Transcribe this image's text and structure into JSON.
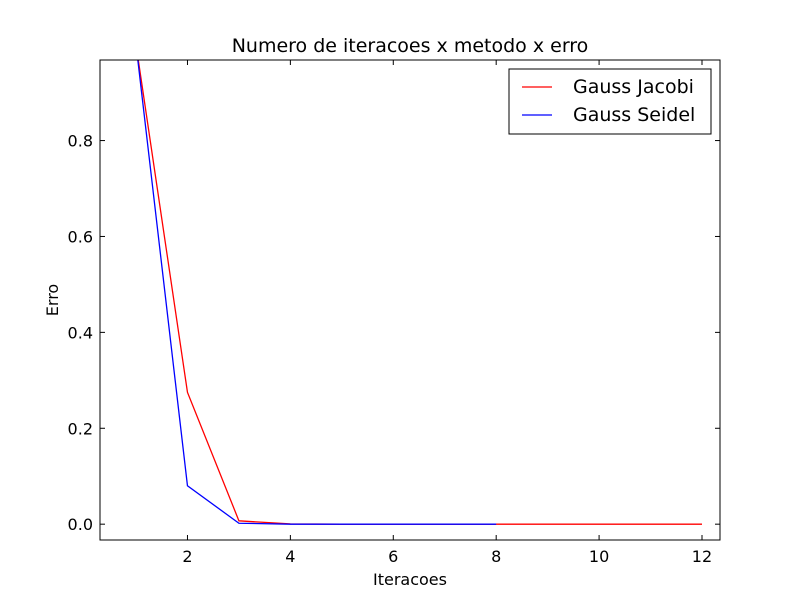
{
  "chart_data": {
    "type": "line",
    "title": "Numero de iteracoes x metodo x erro",
    "xlabel": "Iteracoes",
    "ylabel": "Erro",
    "xlim": [
      0.3,
      12.35
    ],
    "ylim": [
      -0.033,
      0.968
    ],
    "xticks": [
      2,
      4,
      6,
      8,
      10,
      12
    ],
    "yticks": [
      0.0,
      0.2,
      0.4,
      0.6,
      0.8
    ],
    "xtick_labels": [
      "2",
      "4",
      "6",
      "8",
      "10",
      "12"
    ],
    "ytick_labels": [
      "0.0",
      "0.2",
      "0.4",
      "0.6",
      "0.8"
    ],
    "grid": false,
    "legend_position": "top-right",
    "series": [
      {
        "name": "Gauss Jacobi",
        "color": "#ff0000",
        "x": [
          1,
          2,
          3,
          4,
          5,
          6,
          7,
          8,
          9,
          10,
          11,
          12
        ],
        "y": [
          1.0,
          0.275,
          0.007,
          0.0005,
          0.0,
          0.0,
          0.0,
          0.0,
          0.0,
          0.0,
          0.0,
          0.0
        ]
      },
      {
        "name": "Gauss Seidel",
        "color": "#0000ff",
        "x": [
          1,
          2,
          3,
          4,
          5,
          6,
          7,
          8
        ],
        "y": [
          1.0,
          0.08,
          0.002,
          0.0,
          0.0,
          0.0,
          0.0,
          0.0
        ]
      }
    ]
  }
}
